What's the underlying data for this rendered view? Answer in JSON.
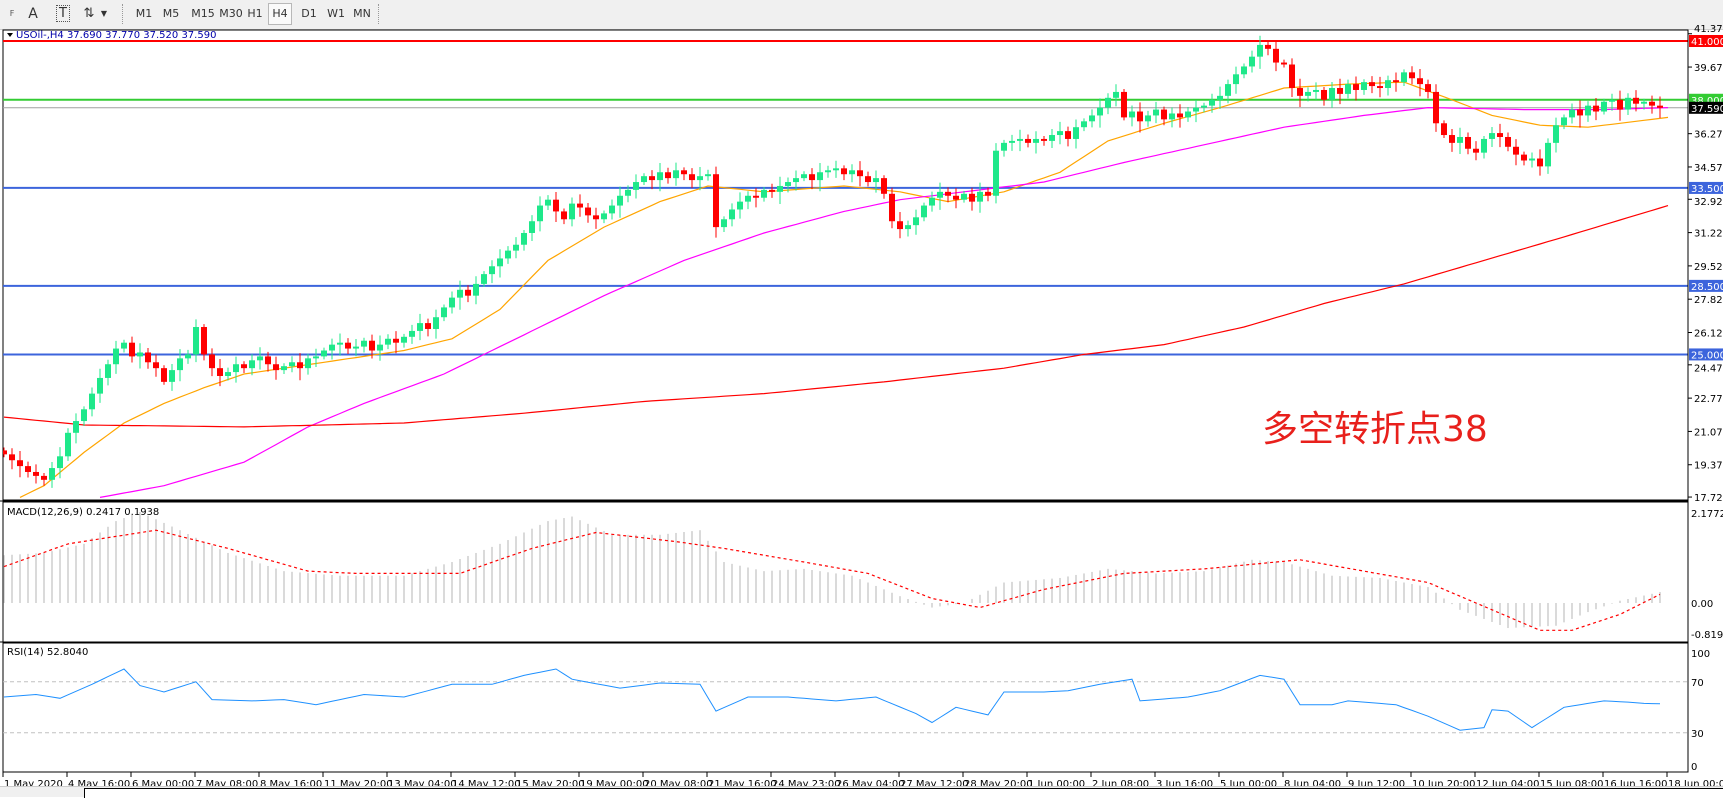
{
  "toolbar": {
    "tools": [
      {
        "name": "fibonacci-fan-tool",
        "label": "F"
      },
      {
        "name": "text-tool",
        "label": "A"
      },
      {
        "name": "text-label-tool",
        "label": "T"
      },
      {
        "name": "arrows-tool",
        "label": "⇅"
      }
    ],
    "periods": [
      "M1",
      "M5",
      "M15",
      "M30",
      "H1",
      "H4",
      "D1",
      "W1",
      "MN"
    ],
    "active_period": "H4"
  },
  "chart_data": [
    {
      "type": "candlestick",
      "title": "USOil-,H4  37.690 37.770 37.520 37.590",
      "symbol": "USOil-",
      "timeframe": "H4",
      "ohlc_current": {
        "open": 37.69,
        "high": 37.77,
        "low": 37.52,
        "close": 37.59
      },
      "price_ticks": [
        "41.370",
        "39.670",
        "36.270",
        "34.570",
        "32.920",
        "31.220",
        "29.520",
        "27.820",
        "26.120",
        "24.470",
        "22.770",
        "21.070",
        "19.370",
        "17.720"
      ],
      "ylim": [
        17.72,
        41.37
      ],
      "x_tick_labels": [
        "1 May 2020",
        "4 May 16:00",
        "6 May 00:00",
        "7 May 08:00",
        "8 May 16:00",
        "11 May 20:00",
        "13 May 04:00",
        "14 May 12:00",
        "15 May 20:00",
        "19 May 00:00",
        "20 May 08:00",
        "21 May 16:00",
        "24 May 23:00",
        "26 May 04:00",
        "27 May 12:00",
        "28 May 20:00",
        "1 Jun 00:00",
        "2 Jun 08:00",
        "3 Jun 16:00",
        "5 Jun 00:00",
        "8 Jun 04:00",
        "9 Jun 12:00",
        "10 Jun 20:00",
        "12 Jun 04:00",
        "15 Jun 08:00",
        "16 Jun 16:00",
        "18 Jun 00:00"
      ],
      "bars_per_tick_label": 8,
      "closes": [
        19.9,
        19.6,
        19.3,
        19.0,
        18.8,
        18.6,
        19.2,
        19.8,
        21.0,
        21.6,
        22.2,
        23.0,
        23.8,
        24.5,
        25.3,
        25.6,
        24.9,
        25.1,
        24.6,
        24.3,
        23.6,
        24.2,
        24.8,
        25.0,
        26.4,
        25.0,
        24.3,
        23.9,
        24.1,
        24.5,
        24.3,
        24.7,
        24.9,
        24.5,
        24.2,
        24.4,
        24.6,
        24.3,
        24.8,
        24.9,
        25.2,
        25.5,
        25.6,
        25.3,
        25.4,
        25.7,
        25.2,
        25.5,
        25.8,
        25.6,
        25.9,
        26.2,
        26.6,
        26.3,
        26.9,
        27.4,
        27.9,
        28.3,
        28.0,
        28.6,
        29.1,
        29.5,
        29.9,
        30.3,
        30.6,
        31.2,
        31.8,
        32.6,
        32.9,
        32.3,
        31.9,
        32.7,
        32.5,
        32.1,
        31.9,
        32.2,
        32.6,
        33.1,
        33.4,
        33.8,
        34.1,
        33.9,
        34.3,
        34.0,
        34.4,
        34.2,
        33.9,
        34.1,
        34.2,
        31.5,
        31.9,
        32.4,
        32.8,
        33.1,
        33.0,
        33.4,
        33.3,
        33.6,
        33.8,
        34.0,
        34.2,
        33.9,
        34.3,
        34.4,
        34.5,
        34.2,
        34.4,
        34.1,
        33.8,
        34.0,
        33.2,
        31.8,
        31.4,
        31.6,
        32.0,
        32.6,
        33.0,
        33.3,
        33.1,
        32.9,
        33.2,
        32.8,
        33.3,
        33.1,
        35.4,
        35.8,
        35.9,
        36.0,
        35.8,
        36.0,
        35.9,
        36.2,
        36.4,
        36.0,
        36.6,
        36.9,
        37.2,
        37.6,
        38.1,
        38.4,
        37.1,
        37.4,
        36.9,
        37.2,
        37.5,
        37.0,
        37.3,
        37.1,
        37.4,
        37.6,
        37.7,
        38.0,
        38.2,
        38.8,
        39.3,
        39.7,
        40.2,
        40.8,
        40.6,
        39.9,
        39.8,
        38.6,
        38.2,
        38.4,
        38.5,
        38.0,
        38.6,
        38.3,
        38.8,
        38.5,
        38.9,
        38.7,
        38.6,
        39.0,
        38.9,
        39.4,
        39.1,
        38.8,
        38.4,
        36.8,
        36.2,
        35.8,
        36.1,
        35.5,
        35.3,
        36.0,
        36.3,
        36.1,
        35.6,
        35.2,
        34.9,
        35.0,
        34.6,
        35.8,
        36.7,
        37.1,
        37.5,
        37.2,
        37.7,
        37.4,
        37.9,
        38.0,
        37.5,
        38.1,
        37.8,
        37.9,
        37.7,
        37.59
      ],
      "first_open": 20.1,
      "moving_averages": [
        {
          "color": "#ffa500",
          "points": [
            [
              2,
              17.7
            ],
            [
              5,
              18.3
            ],
            [
              10,
              20.0
            ],
            [
              15,
              21.5
            ],
            [
              20,
              22.5
            ],
            [
              25,
              23.3
            ],
            [
              30,
              24.0
            ],
            [
              40,
              24.6
            ],
            [
              50,
              25.2
            ],
            [
              56,
              25.8
            ],
            [
              62,
              27.3
            ],
            [
              68,
              29.8
            ],
            [
              75,
              31.5
            ],
            [
              82,
              32.8
            ],
            [
              88,
              33.6
            ],
            [
              95,
              33.3
            ],
            [
              105,
              33.6
            ],
            [
              112,
              33.3
            ],
            [
              118,
              32.8
            ],
            [
              125,
              33.3
            ],
            [
              132,
              34.3
            ],
            [
              138,
              35.9
            ],
            [
              145,
              36.8
            ],
            [
              152,
              37.6
            ],
            [
              160,
              38.6
            ],
            [
              168,
              38.8
            ],
            [
              175,
              38.9
            ],
            [
              181,
              38.0
            ],
            [
              186,
              37.2
            ],
            [
              192,
              36.7
            ],
            [
              198,
              36.6
            ],
            [
              204,
              36.9
            ],
            [
              208,
              37.1
            ]
          ]
        },
        {
          "color": "#ff00ff",
          "points": [
            [
              12,
              17.7
            ],
            [
              20,
              18.3
            ],
            [
              30,
              19.5
            ],
            [
              38,
              21.3
            ],
            [
              45,
              22.5
            ],
            [
              55,
              24.0
            ],
            [
              65,
              26.0
            ],
            [
              75,
              28.0
            ],
            [
              85,
              29.8
            ],
            [
              95,
              31.2
            ],
            [
              105,
              32.3
            ],
            [
              112,
              32.9
            ],
            [
              120,
              33.3
            ],
            [
              130,
              33.8
            ],
            [
              140,
              34.8
            ],
            [
              150,
              35.7
            ],
            [
              160,
              36.6
            ],
            [
              170,
              37.2
            ],
            [
              178,
              37.6
            ],
            [
              190,
              37.5
            ],
            [
              200,
              37.5
            ],
            [
              208,
              37.6
            ]
          ]
        },
        {
          "color": "#ff0000",
          "points": [
            [
              0,
              21.8
            ],
            [
              10,
              21.4
            ],
            [
              30,
              21.3
            ],
            [
              50,
              21.5
            ],
            [
              65,
              22.0
            ],
            [
              80,
              22.6
            ],
            [
              95,
              23.0
            ],
            [
              110,
              23.6
            ],
            [
              125,
              24.3
            ],
            [
              135,
              25.0
            ],
            [
              145,
              25.5
            ],
            [
              155,
              26.4
            ],
            [
              165,
              27.6
            ],
            [
              175,
              28.6
            ],
            [
              185,
              29.8
            ],
            [
              195,
              31.0
            ],
            [
              208,
              32.6
            ]
          ]
        }
      ],
      "horizontal_levels": [
        {
          "value": "41.000",
          "color": "#ff0000"
        },
        {
          "value": "38.000",
          "color": "#33cc33"
        },
        {
          "value": "37.590",
          "color": "#000000",
          "line_color": "#a0a0a0"
        },
        {
          "value": "33.500",
          "color": "#3c64dc"
        },
        {
          "value": "28.500",
          "color": "#3c64dc"
        },
        {
          "value": "25.000",
          "color": "#3c64dc"
        }
      ],
      "annotation": "多空转折点38",
      "bull_color": "#1ee88a",
      "bear_color": "#ff0000"
    },
    {
      "type": "bar",
      "title": "MACD(12,26,9) 0.2417 0.1938",
      "ylim": [
        -0.819,
        2.1772
      ],
      "tick_labels": [
        "2.1772",
        "0.00",
        "-0.819"
      ],
      "histogram": [
        [
          0,
          1.05
        ],
        [
          5,
          1.1
        ],
        [
          10,
          1.3
        ],
        [
          14,
          1.8
        ],
        [
          17,
          2.0
        ],
        [
          22,
          1.6
        ],
        [
          28,
          1.1
        ],
        [
          35,
          0.7
        ],
        [
          42,
          0.6
        ],
        [
          50,
          0.6
        ],
        [
          56,
          0.9
        ],
        [
          62,
          1.3
        ],
        [
          68,
          1.8
        ],
        [
          71,
          1.9
        ],
        [
          76,
          1.5
        ],
        [
          82,
          1.5
        ],
        [
          87,
          1.6
        ],
        [
          90,
          0.9
        ],
        [
          95,
          0.7
        ],
        [
          100,
          0.75
        ],
        [
          106,
          0.6
        ],
        [
          112,
          0.15
        ],
        [
          116,
          -0.1
        ],
        [
          120,
          0.0
        ],
        [
          125,
          0.45
        ],
        [
          132,
          0.55
        ],
        [
          138,
          0.75
        ],
        [
          144,
          0.65
        ],
        [
          150,
          0.7
        ],
        [
          156,
          0.95
        ],
        [
          160,
          0.9
        ],
        [
          166,
          0.6
        ],
        [
          172,
          0.55
        ],
        [
          178,
          0.35
        ],
        [
          182,
          -0.15
        ],
        [
          188,
          -0.55
        ],
        [
          194,
          -0.5
        ],
        [
          198,
          -0.2
        ],
        [
          202,
          0.05
        ],
        [
          207,
          0.24
        ]
      ],
      "signal": [
        [
          0,
          0.8
        ],
        [
          8,
          1.3
        ],
        [
          19,
          1.6
        ],
        [
          28,
          1.2
        ],
        [
          38,
          0.7
        ],
        [
          44,
          0.65
        ],
        [
          57,
          0.65
        ],
        [
          66,
          1.2
        ],
        [
          74,
          1.55
        ],
        [
          84,
          1.35
        ],
        [
          90,
          1.2
        ],
        [
          100,
          0.9
        ],
        [
          108,
          0.65
        ],
        [
          116,
          0.1
        ],
        [
          122,
          -0.1
        ],
        [
          130,
          0.3
        ],
        [
          140,
          0.65
        ],
        [
          150,
          0.75
        ],
        [
          162,
          0.95
        ],
        [
          170,
          0.7
        ],
        [
          178,
          0.45
        ],
        [
          184,
          0.0
        ],
        [
          192,
          -0.6
        ],
        [
          196,
          -0.6
        ],
        [
          202,
          -0.25
        ],
        [
          207,
          0.19
        ]
      ],
      "histogram_color": "#c0c0c0",
      "signal_color": "#ff0000"
    },
    {
      "type": "line",
      "title": "RSI(14) 52.8040",
      "ylim": [
        0,
        100
      ],
      "tick_labels": [
        "100",
        "70",
        "30",
        "0"
      ],
      "levels": [
        70,
        30
      ],
      "values": [
        [
          0,
          58
        ],
        [
          4,
          60
        ],
        [
          7,
          57
        ],
        [
          11,
          68
        ],
        [
          15,
          80
        ],
        [
          17,
          67
        ],
        [
          20,
          62
        ],
        [
          24,
          70
        ],
        [
          26,
          56
        ],
        [
          31,
          55
        ],
        [
          35,
          56
        ],
        [
          39,
          52
        ],
        [
          45,
          60
        ],
        [
          50,
          58
        ],
        [
          56,
          68
        ],
        [
          61,
          68
        ],
        [
          65,
          75
        ],
        [
          69,
          80
        ],
        [
          71,
          72
        ],
        [
          77,
          65
        ],
        [
          82,
          69
        ],
        [
          87,
          68
        ],
        [
          89,
          47
        ],
        [
          93,
          58
        ],
        [
          98,
          58
        ],
        [
          104,
          55
        ],
        [
          109,
          58
        ],
        [
          114,
          45
        ],
        [
          116,
          38
        ],
        [
          119,
          50
        ],
        [
          123,
          44
        ],
        [
          125,
          62
        ],
        [
          130,
          62
        ],
        [
          133,
          63
        ],
        [
          137,
          68
        ],
        [
          141,
          72
        ],
        [
          142,
          55
        ],
        [
          148,
          58
        ],
        [
          152,
          63
        ],
        [
          157,
          75
        ],
        [
          160,
          72
        ],
        [
          162,
          52
        ],
        [
          166,
          52
        ],
        [
          168,
          55
        ],
        [
          174,
          52
        ],
        [
          178,
          43
        ],
        [
          182,
          32
        ],
        [
          185,
          34
        ],
        [
          186,
          48
        ],
        [
          188,
          47
        ],
        [
          191,
          34
        ],
        [
          195,
          50
        ],
        [
          200,
          55
        ],
        [
          203,
          54
        ],
        [
          205,
          53
        ],
        [
          207,
          52.8
        ]
      ],
      "color": "#1e90ff"
    }
  ]
}
